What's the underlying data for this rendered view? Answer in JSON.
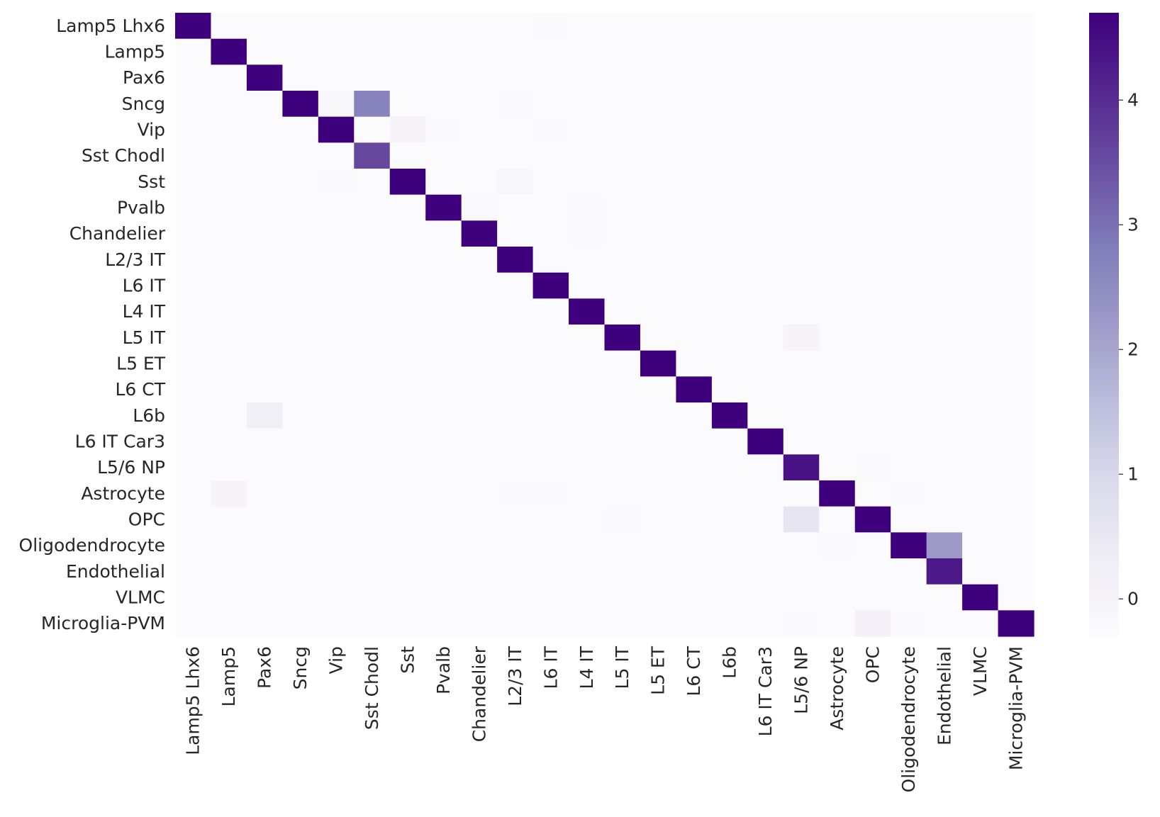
{
  "chart_data": {
    "type": "heatmap",
    "title": "",
    "xlabel": "",
    "ylabel": "",
    "colormap": "Purples",
    "colors": {
      "low": "#fcfbfd",
      "high": "#3f007d"
    },
    "colorbar": {
      "range": [
        -0.3,
        4.7
      ],
      "ticks": [
        0,
        1,
        2,
        3,
        4
      ],
      "tick_labels": [
        "0",
        "1",
        "2",
        "3",
        "4"
      ]
    },
    "rows": [
      "Lamp5 Lhx6",
      "Lamp5",
      "Pax6",
      "Sncg",
      "Vip",
      "Sst Chodl",
      "Sst",
      "Pvalb",
      "Chandelier",
      "L2/3 IT",
      "L6 IT",
      "L4 IT",
      "L5 IT",
      "L5 ET",
      "L6 CT",
      "L6b",
      "L6 IT Car3",
      "L5/6 NP",
      "Astrocyte",
      "OPC",
      "Oligodendrocyte",
      "Endothelial",
      "VLMC",
      "Microglia-PVM"
    ],
    "columns": [
      "Lamp5 Lhx6",
      "Lamp5",
      "Pax6",
      "Sncg",
      "Vip",
      "Sst Chodl",
      "Sst",
      "Pvalb",
      "Chandelier",
      "L2/3 IT",
      "L6 IT",
      "L4 IT",
      "L5 IT",
      "L5 ET",
      "L6 CT",
      "L6b",
      "L6 IT Car3",
      "L5/6 NP",
      "Astrocyte",
      "OPC",
      "Oligodendrocyte",
      "Endothelial",
      "VLMC",
      "Microglia-PVM"
    ],
    "default_value": -0.27,
    "diagonal_value": 4.7,
    "diagonal_overrides": [
      {
        "row": 5,
        "col": 5,
        "value": 3.6
      },
      {
        "row": 17,
        "col": 17,
        "value": 4.4
      },
      {
        "row": 21,
        "col": 21,
        "value": 4.3
      }
    ],
    "off_diagonal": [
      {
        "row": 0,
        "col": 10,
        "value": -0.2
      },
      {
        "row": 3,
        "col": 4,
        "value": -0.1
      },
      {
        "row": 3,
        "col": 5,
        "value": 2.7
      },
      {
        "row": 3,
        "col": 9,
        "value": -0.2
      },
      {
        "row": 4,
        "col": 6,
        "value": 0.0
      },
      {
        "row": 4,
        "col": 7,
        "value": -0.2
      },
      {
        "row": 4,
        "col": 10,
        "value": -0.2
      },
      {
        "row": 6,
        "col": 4,
        "value": -0.2
      },
      {
        "row": 6,
        "col": 9,
        "value": -0.1
      },
      {
        "row": 7,
        "col": 8,
        "value": -0.2
      },
      {
        "row": 7,
        "col": 11,
        "value": -0.2
      },
      {
        "row": 8,
        "col": 11,
        "value": -0.2
      },
      {
        "row": 12,
        "col": 17,
        "value": 0.0
      },
      {
        "row": 15,
        "col": 2,
        "value": 0.2
      },
      {
        "row": 17,
        "col": 19,
        "value": -0.2
      },
      {
        "row": 18,
        "col": 1,
        "value": 0.0
      },
      {
        "row": 18,
        "col": 9,
        "value": -0.2
      },
      {
        "row": 18,
        "col": 10,
        "value": -0.2
      },
      {
        "row": 18,
        "col": 20,
        "value": -0.2
      },
      {
        "row": 19,
        "col": 12,
        "value": -0.2
      },
      {
        "row": 19,
        "col": 17,
        "value": 0.6
      },
      {
        "row": 20,
        "col": 18,
        "value": -0.2
      },
      {
        "row": 20,
        "col": 21,
        "value": 2.2
      },
      {
        "row": 23,
        "col": 17,
        "value": -0.2
      },
      {
        "row": 23,
        "col": 19,
        "value": 0.1
      },
      {
        "row": 23,
        "col": 20,
        "value": -0.2
      }
    ]
  }
}
